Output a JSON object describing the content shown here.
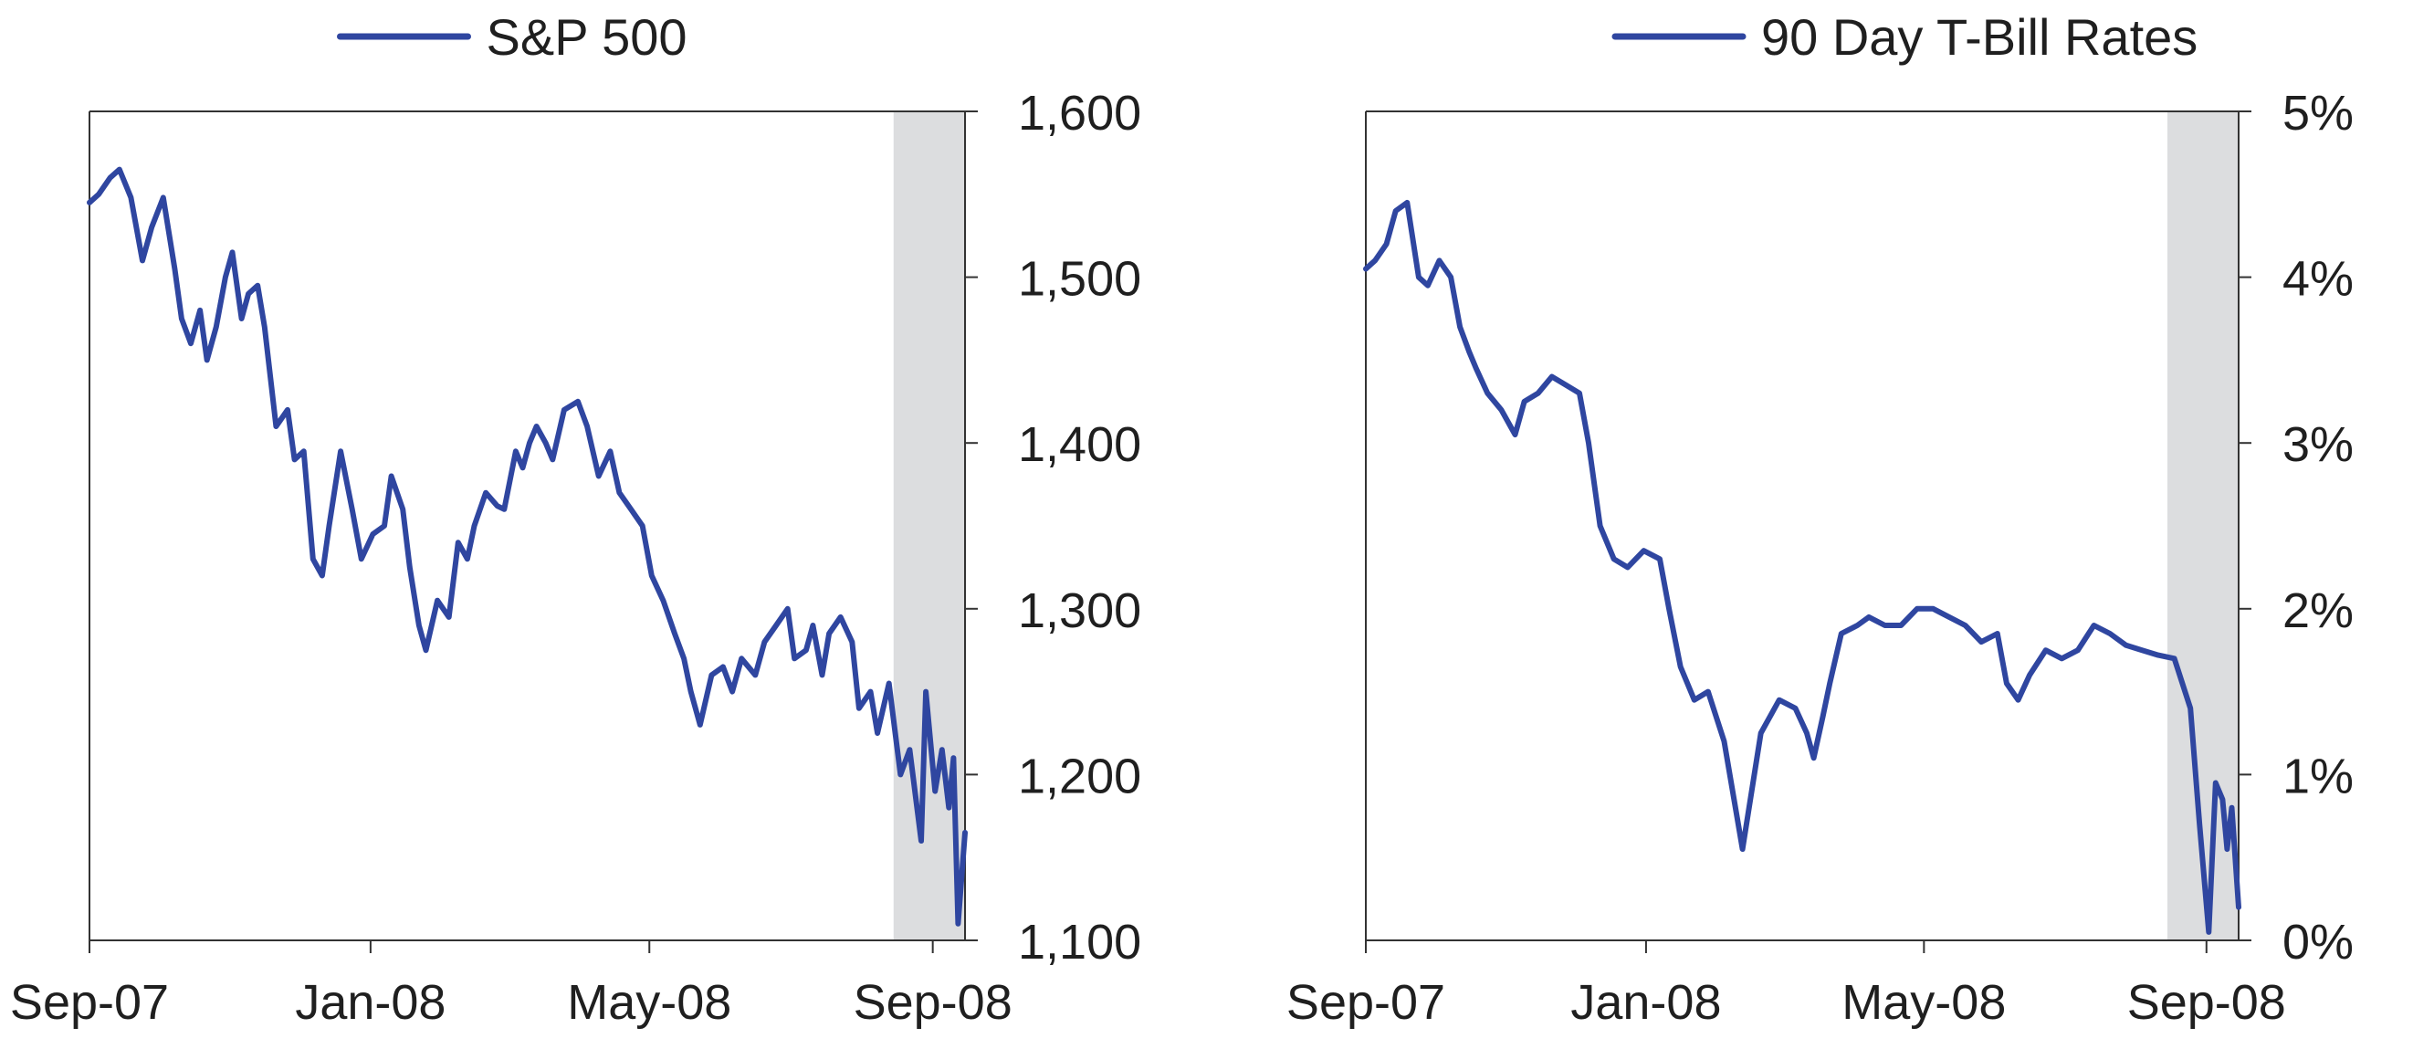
{
  "colors": {
    "line": "#2f46a0",
    "shade": "#dcdddf",
    "axis": "#333333",
    "text": "#1f1f1f",
    "background": "#ffffff"
  },
  "chart_data": [
    {
      "type": "line",
      "title": "",
      "xlabel": "",
      "ylabel": "",
      "legend": "top-center",
      "grid": false,
      "x_ticks": [
        "Sep-07",
        "Jan-08",
        "May-08",
        "Sep-08"
      ],
      "y_ticks": [
        "1,100",
        "1,200",
        "1,300",
        "1,400",
        "1,500",
        "1,600"
      ],
      "ylim": [
        1100,
        1600
      ],
      "xlim": [
        "2007-09-01",
        "2008-09-15"
      ],
      "shaded_period": [
        "2008-08-15",
        "2008-09-15"
      ],
      "series": [
        {
          "name": "S&P 500",
          "x": [
            "2007-09-01",
            "2007-09-05",
            "2007-09-10",
            "2007-09-14",
            "2007-09-19",
            "2007-09-24",
            "2007-09-28",
            "2007-10-03",
            "2007-10-08",
            "2007-10-11",
            "2007-10-15",
            "2007-10-19",
            "2007-10-22",
            "2007-10-26",
            "2007-10-30",
            "2007-11-02",
            "2007-11-06",
            "2007-11-09",
            "2007-11-13",
            "2007-11-16",
            "2007-11-21",
            "2007-11-26",
            "2007-11-29",
            "2007-12-03",
            "2007-12-07",
            "2007-12-11",
            "2007-12-14",
            "2007-12-19",
            "2007-12-24",
            "2007-12-28",
            "2008-01-02",
            "2008-01-07",
            "2008-01-10",
            "2008-01-15",
            "2008-01-18",
            "2008-01-22",
            "2008-01-25",
            "2008-01-30",
            "2008-02-04",
            "2008-02-08",
            "2008-02-12",
            "2008-02-15",
            "2008-02-20",
            "2008-02-25",
            "2008-02-28",
            "2008-03-04",
            "2008-03-07",
            "2008-03-10",
            "2008-03-13",
            "2008-03-17",
            "2008-03-20",
            "2008-03-25",
            "2008-03-31",
            "2008-04-04",
            "2008-04-09",
            "2008-04-14",
            "2008-04-18",
            "2008-04-23",
            "2008-04-28",
            "2008-05-02",
            "2008-05-07",
            "2008-05-12",
            "2008-05-16",
            "2008-05-19",
            "2008-05-23",
            "2008-05-28",
            "2008-06-02",
            "2008-06-06",
            "2008-06-10",
            "2008-06-16",
            "2008-06-20",
            "2008-06-25",
            "2008-06-30",
            "2008-07-03",
            "2008-07-08",
            "2008-07-11",
            "2008-07-15",
            "2008-07-18",
            "2008-07-23",
            "2008-07-28",
            "2008-07-31",
            "2008-08-05",
            "2008-08-08",
            "2008-08-13",
            "2008-08-18",
            "2008-08-22",
            "2008-08-27",
            "2008-08-29",
            "2008-09-02",
            "2008-09-05",
            "2008-09-08",
            "2008-09-10",
            "2008-09-12",
            "2008-09-15"
          ],
          "values": [
            1545,
            1550,
            1560,
            1565,
            1548,
            1510,
            1530,
            1548,
            1505,
            1475,
            1460,
            1480,
            1450,
            1470,
            1500,
            1515,
            1475,
            1490,
            1495,
            1470,
            1410,
            1420,
            1390,
            1395,
            1330,
            1320,
            1350,
            1395,
            1360,
            1330,
            1345,
            1350,
            1380,
            1360,
            1325,
            1290,
            1275,
            1305,
            1295,
            1340,
            1330,
            1350,
            1370,
            1362,
            1360,
            1395,
            1385,
            1400,
            1410,
            1400,
            1390,
            1420,
            1425,
            1410,
            1380,
            1395,
            1370,
            1360,
            1350,
            1320,
            1305,
            1285,
            1270,
            1250,
            1230,
            1260,
            1265,
            1250,
            1270,
            1260,
            1280,
            1290,
            1300,
            1270,
            1275,
            1290,
            1260,
            1285,
            1295,
            1280,
            1240,
            1250,
            1225,
            1255,
            1200,
            1215,
            1160,
            1250,
            1190,
            1215,
            1180,
            1210,
            1110,
            1165
          ]
        }
      ]
    },
    {
      "type": "line",
      "title": "",
      "xlabel": "",
      "ylabel": "",
      "legend": "top-center",
      "grid": false,
      "x_ticks": [
        "Sep-07",
        "Jan-08",
        "May-08",
        "Sep-08"
      ],
      "y_ticks": [
        "0%",
        "1%",
        "2%",
        "3%",
        "4%",
        "5%"
      ],
      "ylim": [
        0,
        5
      ],
      "xlim": [
        "2007-09-01",
        "2008-09-15"
      ],
      "shaded_period": [
        "2008-08-15",
        "2008-09-15"
      ],
      "series": [
        {
          "name": "90 Day T-Bill Rates",
          "x": [
            "2007-09-01",
            "2007-09-05",
            "2007-09-10",
            "2007-09-14",
            "2007-09-19",
            "2007-09-24",
            "2007-09-28",
            "2007-10-03",
            "2007-10-08",
            "2007-10-12",
            "2007-10-16",
            "2007-10-19",
            "2007-10-24",
            "2007-10-30",
            "2007-11-05",
            "2007-11-09",
            "2007-11-15",
            "2007-11-21",
            "2007-11-27",
            "2007-12-03",
            "2007-12-07",
            "2007-12-12",
            "2007-12-18",
            "2007-12-24",
            "2007-12-31",
            "2008-01-07",
            "2008-01-11",
            "2008-01-16",
            "2008-01-22",
            "2008-01-28",
            "2008-02-04",
            "2008-02-12",
            "2008-02-20",
            "2008-02-28",
            "2008-03-06",
            "2008-03-11",
            "2008-03-14",
            "2008-03-18",
            "2008-03-21",
            "2008-03-26",
            "2008-04-02",
            "2008-04-07",
            "2008-04-14",
            "2008-04-21",
            "2008-04-28",
            "2008-05-05",
            "2008-05-12",
            "2008-05-19",
            "2008-05-26",
            "2008-06-02",
            "2008-06-06",
            "2008-06-11",
            "2008-06-16",
            "2008-06-23",
            "2008-06-30",
            "2008-07-07",
            "2008-07-14",
            "2008-07-21",
            "2008-07-28",
            "2008-08-04",
            "2008-08-11",
            "2008-08-18",
            "2008-08-25",
            "2008-08-29",
            "2008-09-02",
            "2008-09-05",
            "2008-09-08",
            "2008-09-10",
            "2008-09-12",
            "2008-09-15"
          ],
          "values": [
            4.05,
            4.1,
            4.2,
            4.4,
            4.45,
            4.0,
            3.95,
            4.1,
            4.0,
            3.7,
            3.55,
            3.45,
            3.3,
            3.2,
            3.05,
            3.25,
            3.3,
            3.4,
            3.35,
            3.3,
            3.0,
            2.5,
            2.3,
            2.25,
            2.35,
            2.3,
            2.0,
            1.65,
            1.45,
            1.5,
            1.2,
            0.55,
            1.25,
            1.45,
            1.4,
            1.25,
            1.1,
            1.35,
            1.55,
            1.85,
            1.9,
            1.95,
            1.9,
            1.9,
            2.0,
            2.0,
            1.95,
            1.9,
            1.8,
            1.85,
            1.55,
            1.45,
            1.6,
            1.75,
            1.7,
            1.75,
            1.9,
            1.85,
            1.78,
            1.75,
            1.72,
            1.7,
            1.4,
            0.7,
            0.05,
            0.95,
            0.85,
            0.55,
            0.8,
            0.2
          ]
        }
      ]
    }
  ]
}
